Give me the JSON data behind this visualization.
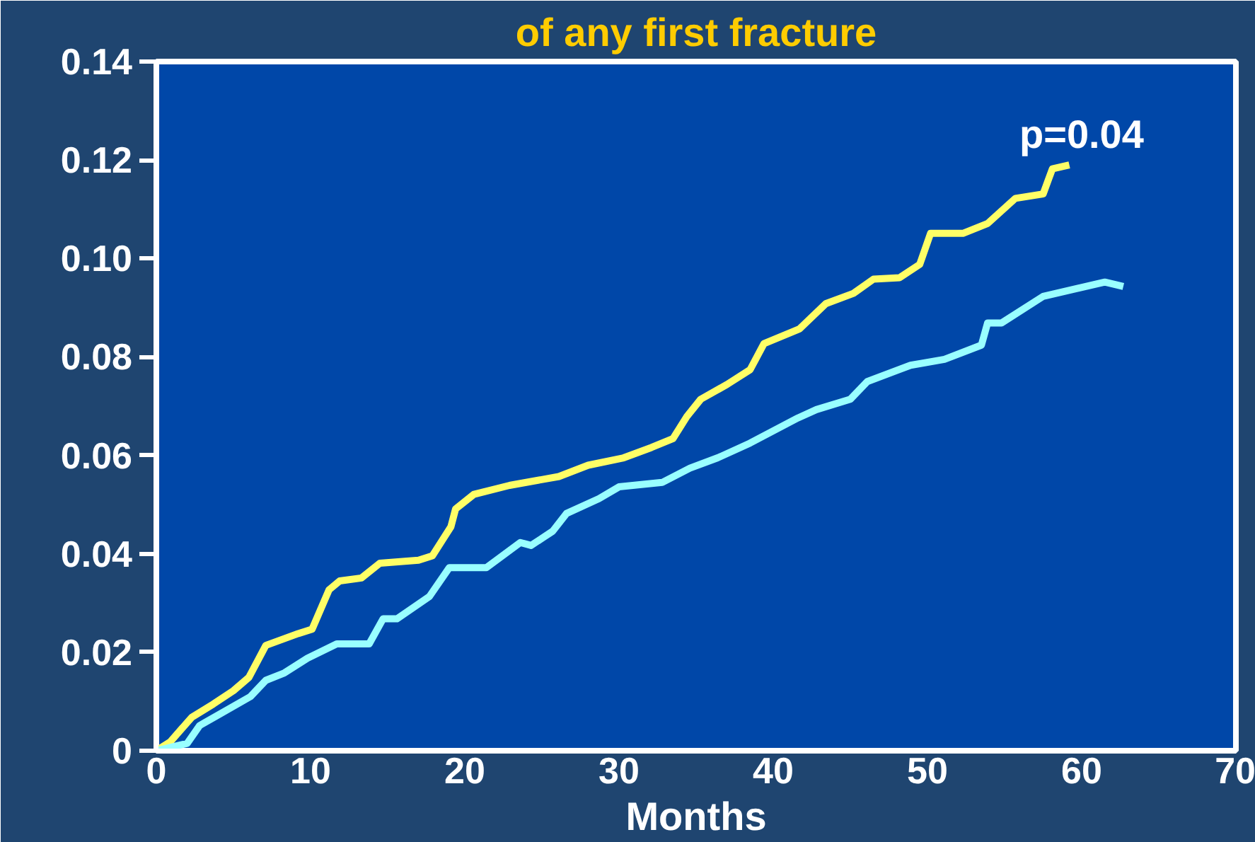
{
  "chart_data": {
    "type": "line",
    "title": "of any first fracture",
    "xlabel": "Months",
    "xlim": [
      0,
      70
    ],
    "xticks": [
      0,
      10,
      20,
      30,
      40,
      50,
      60,
      70
    ],
    "ylim": [
      0,
      0.14
    ],
    "yticks": [
      0,
      {
        "value": 0.02,
        "label": "0.02"
      },
      {
        "value": 0.04,
        "label": "0.04"
      },
      {
        "value": 0.06,
        "label": "0.06"
      },
      {
        "value": 0.08,
        "label": "0.08"
      },
      {
        "value": 0.1,
        "label": "0.10"
      },
      {
        "value": 0.12,
        "label": "0.12"
      },
      {
        "value": 0.14,
        "label": "0.14"
      }
    ],
    "marker": "none",
    "line_style": "solid",
    "annotations": [
      "p=0.04"
    ],
    "series": [
      {
        "color": "#ffff66",
        "x": [
          0,
          0.9,
          2.3,
          3.7,
          5.0,
          6.0,
          7.1,
          9.2,
          10.1,
          11.2,
          11.9,
          13.3,
          14.5,
          17.0,
          17.9,
          19.1,
          19.4,
          20.6,
          22.9,
          26.1,
          28.0,
          30.3,
          32.1,
          33.5,
          34.4,
          35.3,
          37.0,
          38.5,
          39.4,
          41.7,
          43.4,
          45.2,
          46.5,
          48.2,
          49.5,
          50.2,
          52.3,
          53.9,
          55.7,
          57.5,
          58.1,
          59.2
        ],
        "values": [
          0,
          0.0018,
          0.0068,
          0.0095,
          0.0122,
          0.0149,
          0.0214,
          0.0238,
          0.0247,
          0.0327,
          0.0345,
          0.0351,
          0.0381,
          0.0387,
          0.0396,
          0.0455,
          0.0491,
          0.0521,
          0.0539,
          0.0557,
          0.058,
          0.0595,
          0.0616,
          0.0634,
          0.0679,
          0.0714,
          0.0744,
          0.0774,
          0.0827,
          0.0857,
          0.0908,
          0.0929,
          0.0958,
          0.0961,
          0.0988,
          0.1051,
          0.1051,
          0.1071,
          0.1122,
          0.1131,
          0.1182,
          0.119
        ]
      },
      {
        "color": "#99ffff",
        "x": [
          0,
          2.0,
          2.8,
          6.1,
          7.1,
          8.3,
          9.8,
          11.7,
          13.8,
          14.7,
          15.6,
          17.7,
          19.0,
          21.4,
          23.6,
          24.3,
          25.7,
          26.6,
          28.7,
          30.0,
          32.8,
          34.6,
          36.4,
          38.5,
          41.6,
          42.8,
          45.0,
          46.1,
          48.9,
          51.1,
          53.5,
          53.9,
          54.8,
          57.5,
          61.5,
          62.7
        ],
        "values": [
          0,
          0.0015,
          0.0051,
          0.011,
          0.0143,
          0.0158,
          0.0188,
          0.0217,
          0.0217,
          0.0268,
          0.0268,
          0.0313,
          0.0372,
          0.0372,
          0.0423,
          0.0417,
          0.0446,
          0.0482,
          0.0512,
          0.0536,
          0.0545,
          0.0574,
          0.0595,
          0.0625,
          0.0676,
          0.0693,
          0.0714,
          0.075,
          0.0783,
          0.0795,
          0.0824,
          0.0869,
          0.0869,
          0.0923,
          0.0952,
          0.0943
        ]
      }
    ]
  }
}
